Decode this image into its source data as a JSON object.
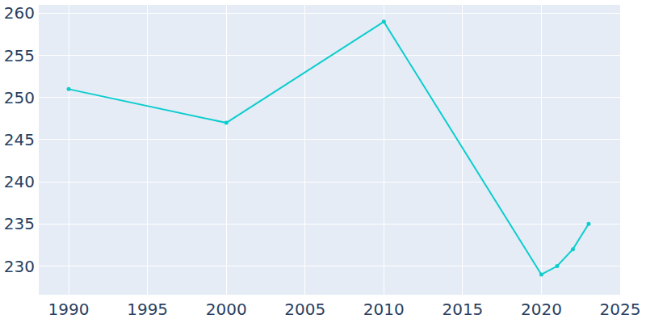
{
  "chart_data": {
    "type": "line",
    "x": [
      1990,
      2000,
      2010,
      2020,
      2021,
      2022,
      2023
    ],
    "values": [
      251,
      247,
      259,
      229,
      230,
      232,
      235
    ],
    "color": "#0dcdcd",
    "marker": "circle",
    "xlim": [
      1988.1,
      2025
    ],
    "xticks": [
      1990,
      1995,
      2000,
      2005,
      2010,
      2015,
      2020,
      2025
    ],
    "ylim": [
      226.6,
      261
    ],
    "yticks": [
      230,
      235,
      240,
      245,
      250,
      255,
      260
    ],
    "grid": true
  }
}
